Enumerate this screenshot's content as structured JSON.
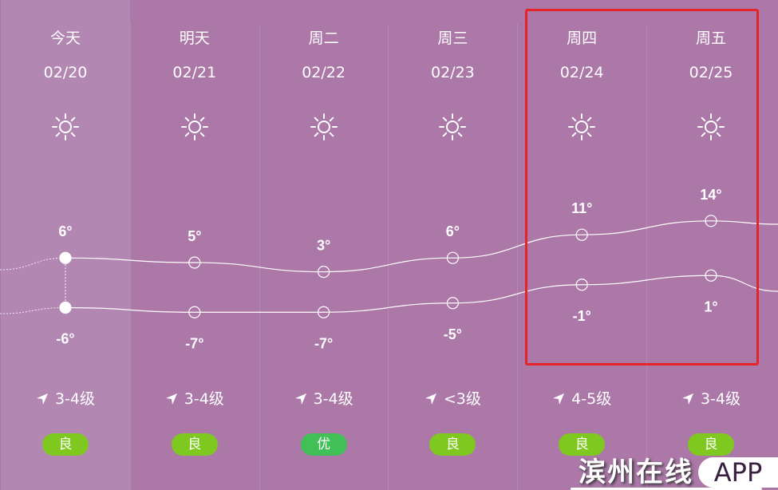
{
  "days": [
    {
      "name": "今天",
      "date": "02/20",
      "weather_icon": "sun-icon",
      "high": 6,
      "low": -6,
      "high_label": "6°",
      "low_label": "-6°",
      "wind": "3-4级",
      "aqi": "良",
      "aqi_color": "#7ec820"
    },
    {
      "name": "明天",
      "date": "02/21",
      "weather_icon": "sun-icon",
      "high": 5,
      "low": -7,
      "high_label": "5°",
      "low_label": "-7°",
      "wind": "3-4级",
      "aqi": "良",
      "aqi_color": "#7ec820"
    },
    {
      "name": "周二",
      "date": "02/22",
      "weather_icon": "sun-icon",
      "high": 3,
      "low": -7,
      "high_label": "3°",
      "low_label": "-7°",
      "wind": "3-4级",
      "aqi": "优",
      "aqi_color": "#40c057"
    },
    {
      "name": "周三",
      "date": "02/23",
      "weather_icon": "sun-icon",
      "high": 6,
      "low": -5,
      "high_label": "6°",
      "low_label": "-5°",
      "wind": "<3级",
      "aqi": "良",
      "aqi_color": "#7ec820"
    },
    {
      "name": "周四",
      "date": "02/24",
      "weather_icon": "sun-icon",
      "high": 11,
      "low": -1,
      "high_label": "11°",
      "low_label": "-1°",
      "wind": "4-5级",
      "aqi": "良",
      "aqi_color": "#7ec820"
    },
    {
      "name": "周五",
      "date": "02/25",
      "weather_icon": "sun-icon",
      "high": 14,
      "low": 1,
      "high_label": "14°",
      "low_label": "1°",
      "wind": "3-4级",
      "aqi": "良",
      "aqi_color": "#7ec820"
    }
  ],
  "highlight_color": "#e5242a",
  "watermark": {
    "text_cn": "滨州在线",
    "text_app": "APP"
  }
}
